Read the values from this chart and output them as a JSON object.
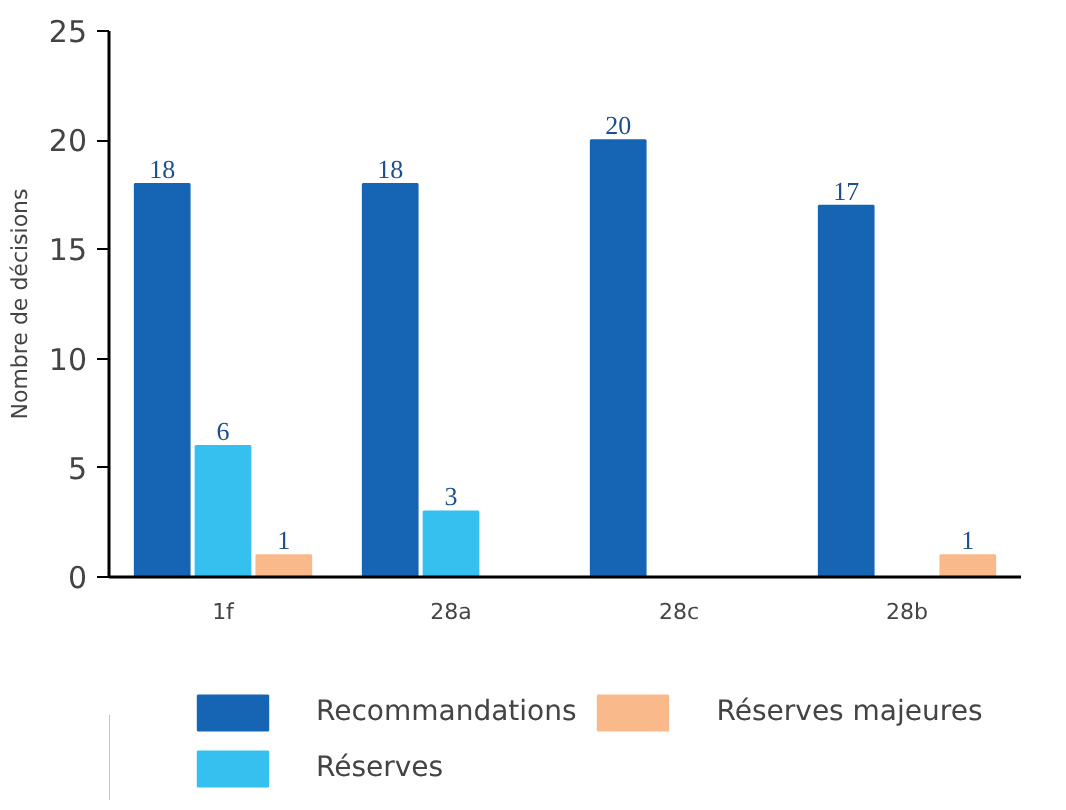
{
  "chart_data": {
    "type": "bar",
    "ylabel": "Nombre de décisions",
    "categories": [
      "1f",
      "28a",
      "28c",
      "28b"
    ],
    "ylim": [
      0,
      25
    ],
    "yticks": [
      0,
      5,
      10,
      15,
      20,
      25
    ],
    "grid": false,
    "legend": "bottom",
    "series": [
      {
        "name": "Recommandations",
        "color": "#1565b4",
        "values": [
          18,
          18,
          20,
          17
        ],
        "value_labels": [
          "18",
          "18",
          "20",
          "17"
        ]
      },
      {
        "name": "Réserves",
        "color": "#35c0f0",
        "values": [
          6,
          3,
          0,
          0
        ],
        "value_labels": [
          "6",
          "3",
          null,
          null
        ]
      },
      {
        "name": "Réserves majeures",
        "color": "#f9b98a",
        "values": [
          1,
          0,
          0,
          1
        ],
        "value_labels": [
          "1",
          null,
          null,
          "1"
        ]
      }
    ]
  }
}
